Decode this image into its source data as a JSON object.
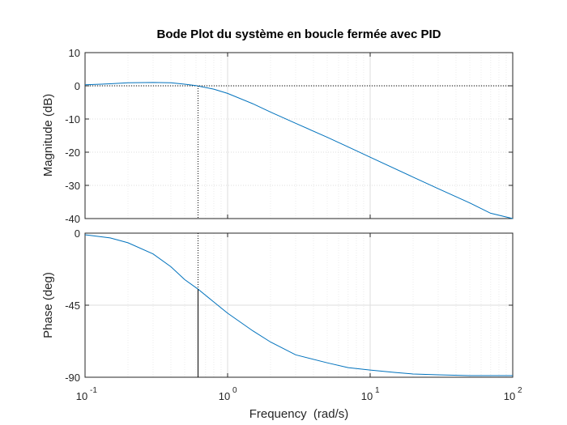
{
  "chart_data": [
    {
      "type": "line",
      "panel": "magnitude",
      "title": "Bode Plot du système en boucle fermée avec PID",
      "xlabel": "",
      "ylabel": "Magnitude (dB)",
      "xscale": "log",
      "xlim": [
        0.1,
        100
      ],
      "ylim": [
        -40,
        10
      ],
      "yticks": [
        10,
        0,
        -10,
        -20,
        -30,
        -40
      ],
      "grid": true,
      "series": [
        {
          "color": "#0072bd",
          "x": [
            0.1,
            0.15,
            0.2,
            0.3,
            0.4,
            0.5,
            0.6,
            0.8,
            1,
            1.5,
            2,
            3,
            5,
            7,
            10,
            20,
            30,
            50,
            70,
            100
          ],
          "values": [
            0.3,
            0.6,
            0.9,
            1.0,
            0.9,
            0.5,
            0.05,
            -1.0,
            -2.3,
            -5.4,
            -7.9,
            -11.3,
            -15.5,
            -18.4,
            -21.5,
            -27.5,
            -31.0,
            -35.3,
            -38.4,
            -40.0
          ]
        }
      ],
      "marker": {
        "x": 0.62,
        "y": 0
      }
    },
    {
      "type": "line",
      "panel": "phase",
      "title": "",
      "xlabel": "Frequency  (rad/s)",
      "ylabel": "Phase (deg)",
      "xscale": "log",
      "xlim": [
        0.1,
        100
      ],
      "ylim": [
        -90,
        0
      ],
      "yticks": [
        0,
        -45,
        -90
      ],
      "xticks": [
        {
          "base": "10",
          "exp": "-1",
          "value": 0.1
        },
        {
          "base": "10",
          "exp": "0",
          "value": 1
        },
        {
          "base": "10",
          "exp": "1",
          "value": 10
        },
        {
          "base": "10",
          "exp": "2",
          "value": 100
        }
      ],
      "grid": true,
      "series": [
        {
          "color": "#0072bd",
          "x": [
            0.1,
            0.15,
            0.2,
            0.3,
            0.4,
            0.5,
            0.62,
            0.8,
            1,
            1.5,
            2,
            3,
            5,
            7,
            10,
            15,
            20,
            30,
            50,
            100
          ],
          "values": [
            -1,
            -3,
            -6,
            -13,
            -21,
            -29,
            -35,
            -43,
            -50,
            -61,
            -68,
            -76,
            -81,
            -84,
            -85.5,
            -87,
            -88,
            -88.5,
            -89,
            -89
          ]
        }
      ],
      "marker": {
        "x": 0.62,
        "y": -35
      }
    }
  ],
  "texts": {
    "title": "Bode Plot du système en boucle fermée avec PID",
    "mag_ylabel": "Magnitude (dB)",
    "phase_ylabel": "Phase (deg)",
    "xlabel": "Frequency  (rad/s)",
    "mag_ticks": [
      "10",
      "0",
      "-10",
      "-20",
      "-30",
      "-40"
    ],
    "phase_ticks": [
      "0",
      "-45",
      "-90"
    ]
  },
  "colors": {
    "line": "#0072bd",
    "axis": "#262626",
    "grid_major": "#dedede",
    "grid_minor": "#ececec"
  }
}
